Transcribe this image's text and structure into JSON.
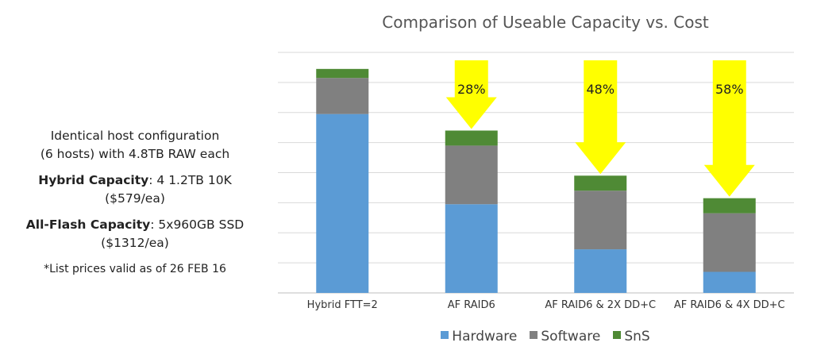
{
  "left_panel": {
    "line1": "Identical host configuration",
    "line2": "(6 hosts) with 4.8TB RAW each",
    "hybrid_label": "Hybrid Capacity",
    "hybrid_value": ": 4 1.2TB 10K",
    "hybrid_price": "($579/ea)",
    "allflash_label": "All-Flash Capacity",
    "allflash_value": ": 5x960GB SSD",
    "allflash_price": "($1312/ea)",
    "note": "*List prices valid as of 26 FEB 16"
  },
  "chart_data": {
    "type": "bar",
    "stacked": true,
    "title": "Comparison of Useable Capacity vs. Cost",
    "xlabel": "",
    "ylabel": "",
    "categories": [
      "Hybrid FTT=2",
      "AF RAID6",
      "AF RAID6 & 2X DD+C",
      "AF RAID6 & 4X DD+C"
    ],
    "series": [
      {
        "name": "Hardware",
        "color": "#5b9bd5",
        "values": [
          5.95,
          2.95,
          1.45,
          0.7
        ]
      },
      {
        "name": "Software",
        "color": "#808080",
        "values": [
          1.2,
          1.95,
          1.95,
          1.95
        ]
      },
      {
        "name": "SnS",
        "color": "#4f8a35",
        "values": [
          0.3,
          0.5,
          0.5,
          0.5
        ]
      }
    ],
    "ylim": [
      0,
      8
    ],
    "grid": true,
    "legend": "bottom",
    "annotations": [
      {
        "category": "Hybrid FTT=2",
        "text": ""
      },
      {
        "category": "AF RAID6",
        "text": "28%"
      },
      {
        "category": "AF RAID6 & 2X DD+C",
        "text": "48%"
      },
      {
        "category": "AF RAID6 & 4X DD+C",
        "text": "58%"
      }
    ],
    "annotation_color": "#ffff00"
  }
}
